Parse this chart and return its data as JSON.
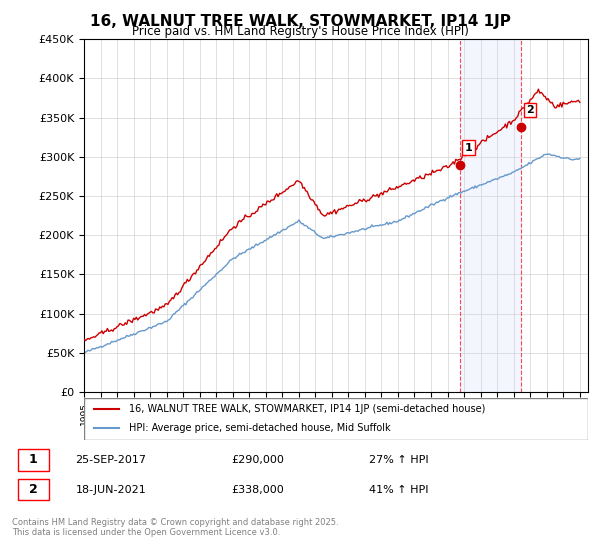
{
  "title": "16, WALNUT TREE WALK, STOWMARKET, IP14 1JP",
  "subtitle": "Price paid vs. HM Land Registry's House Price Index (HPI)",
  "hpi_label": "HPI: Average price, semi-detached house, Mid Suffolk",
  "property_label": "16, WALNUT TREE WALK, STOWMARKET, IP14 1JP (semi-detached house)",
  "sale1_date": "25-SEP-2017",
  "sale1_price": "£290,000",
  "sale1_pct": "27% ↑ HPI",
  "sale2_date": "18-JUN-2021",
  "sale2_price": "£338,000",
  "sale2_pct": "41% ↑ HPI",
  "footer": "Contains HM Land Registry data © Crown copyright and database right 2025.\nThis data is licensed under the Open Government Licence v3.0.",
  "property_color": "#cc0000",
  "hpi_color": "#6699cc",
  "sale1_x": 2017.73,
  "sale2_x": 2021.46,
  "ylim": [
    0,
    450000
  ],
  "xlim_start": 1995,
  "xlim_end": 2025.5,
  "background_color": "#f0f4ff"
}
